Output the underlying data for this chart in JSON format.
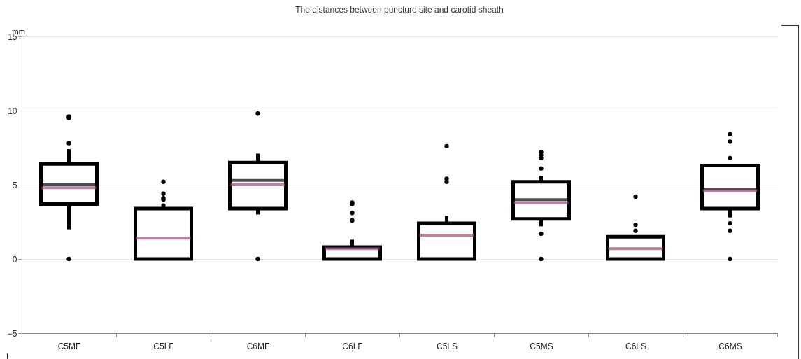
{
  "chart_data": {
    "type": "box",
    "title": "The distances between puncture site and carotid  sheath",
    "ylabel": "mm",
    "categories": [
      "C5MF",
      "C5LF",
      "C6MF",
      "C6LF",
      "C5LS",
      "C5MS",
      "C6LS",
      "C6MS"
    ],
    "boxes": [
      {
        "low": 2.0,
        "q1": 3.7,
        "median": 5.0,
        "q3": 6.4,
        "high": 7.4,
        "mean": 4.8,
        "outliers": [
          9.6,
          9.5,
          7.8,
          0
        ]
      },
      {
        "low": 0,
        "q1": 0,
        "median": 0,
        "q3": 3.4,
        "high": 3.3,
        "mean": 1.4,
        "outliers": [
          3.6,
          4.0,
          4.1,
          4.4,
          5.2
        ]
      },
      {
        "low": 3.0,
        "q1": 3.4,
        "median": 5.3,
        "q3": 6.5,
        "high": 7.1,
        "mean": 5.0,
        "outliers": [
          9.8,
          0
        ]
      },
      {
        "low": 0,
        "q1": 0,
        "median": 0,
        "q3": 0.8,
        "high": 1.3,
        "mean": 0.7,
        "outliers": [
          2.6,
          3.1,
          3.7,
          3.8
        ]
      },
      {
        "low": 0,
        "q1": 0,
        "median": 0,
        "q3": 2.4,
        "high": 2.9,
        "mean": 1.6,
        "outliers": [
          5.2,
          5.4,
          7.6
        ]
      },
      {
        "low": 2.2,
        "q1": 2.7,
        "median": 4.0,
        "q3": 5.2,
        "high": 5.6,
        "mean": 3.8,
        "outliers": [
          6.1,
          6.8,
          7.0,
          7.2,
          1.7,
          0
        ]
      },
      {
        "low": 0,
        "q1": 0,
        "median": 0,
        "q3": 1.5,
        "high": 1.6,
        "mean": 0.7,
        "outliers": [
          1.9,
          2.3,
          4.2
        ]
      },
      {
        "low": 2.8,
        "q1": 3.4,
        "median": 4.7,
        "q3": 6.3,
        "high": 6.4,
        "mean": 4.6,
        "outliers": [
          6.8,
          7.9,
          8.4,
          2.4,
          1.9,
          0
        ]
      }
    ],
    "ylim": [
      -5,
      15
    ],
    "yticks": [
      -5,
      0,
      5,
      10,
      15
    ],
    "grid": "y"
  }
}
